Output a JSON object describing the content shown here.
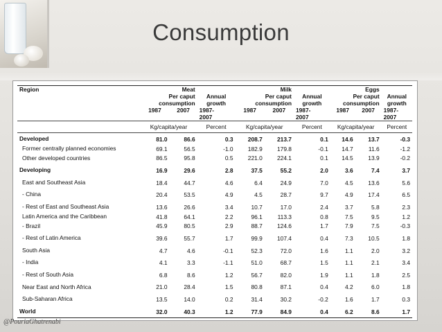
{
  "slide": {
    "title": "Consumption",
    "watermark": "@PouriaGhatrenabi"
  },
  "table": {
    "header": {
      "region": "Region",
      "groups": [
        "Meat",
        "Milk",
        "Eggs"
      ],
      "per_caput": "Per caput",
      "consumption": "consumption",
      "annual": "Annual",
      "growth": "growth",
      "year_a": "1987",
      "year_b": "2007",
      "period_top": "1987-",
      "period_bottom": "2007",
      "unit": "Kg/capita/year",
      "percent": "Percent"
    },
    "rows": [
      {
        "label": "Developed",
        "bold": true,
        "indent": 0,
        "v": [
          "81.0",
          "86.6",
          "0.3",
          "208.7",
          "213.7",
          "0.1",
          "14.6",
          "13.7",
          "-0.3"
        ]
      },
      {
        "label": "Former centrally planned economies",
        "bold": false,
        "indent": 1,
        "v": [
          "69.1",
          "56.5",
          "-1.0",
          "182.9",
          "179.8",
          "-0.1",
          "14.7",
          "11.6",
          "-1.2"
        ]
      },
      {
        "label": "Other developed countries",
        "bold": false,
        "indent": 1,
        "v": [
          "86.5",
          "95.8",
          "0.5",
          "221.0",
          "224.1",
          "0.1",
          "14.5",
          "13.9",
          "-0.2"
        ]
      },
      {
        "label": "Developing",
        "bold": true,
        "indent": 0,
        "v": [
          "16.9",
          "29.6",
          "2.8",
          "37.5",
          "55.2",
          "2.0",
          "3.6",
          "7.4",
          "3.7"
        ]
      },
      {
        "label": "East and Southeast Asia",
        "bold": false,
        "indent": 1,
        "v": [
          "18.4",
          "44.7",
          "4.6",
          "6.4",
          "24.9",
          "7.0",
          "4.5",
          "13.6",
          "5.6"
        ]
      },
      {
        "label": "- China",
        "bold": false,
        "indent": 2,
        "v": [
          "20.4",
          "53.5",
          "4.9",
          "4.5",
          "28.7",
          "9.7",
          "4.9",
          "17.4",
          "6.5"
        ]
      },
      {
        "label": "- Rest of East and Southeast Asia",
        "bold": false,
        "indent": 2,
        "v": [
          "13.6",
          "26.6",
          "3.4",
          "10.7",
          "17.0",
          "2.4",
          "3.7",
          "5.8",
          "2.3"
        ]
      },
      {
        "label": "Latin America and the Caribbean",
        "bold": false,
        "indent": 1,
        "v": [
          "41.8",
          "64.1",
          "2.2",
          "96.1",
          "113.3",
          "0.8",
          "7.5",
          "9.5",
          "1.2"
        ]
      },
      {
        "label": "- Brazil",
        "bold": false,
        "indent": 2,
        "v": [
          "45.9",
          "80.5",
          "2.9",
          "88.7",
          "124.6",
          "1.7",
          "7.9",
          "7.5",
          "-0.3"
        ]
      },
      {
        "label": "- Rest of Latin America",
        "bold": false,
        "indent": 2,
        "v": [
          "39.6",
          "55.7",
          "1.7",
          "99.9",
          "107.4",
          "0.4",
          "7.3",
          "10.5",
          "1.8"
        ]
      },
      {
        "label": "South Asia",
        "bold": false,
        "indent": 1,
        "v": [
          "4.7",
          "4.6",
          "-0.1",
          "52.3",
          "72.0",
          "1.6",
          "1.1",
          "2.0",
          "3.2"
        ]
      },
      {
        "label": "- India",
        "bold": false,
        "indent": 2,
        "v": [
          "4.1",
          "3.3",
          "-1.1",
          "51.0",
          "68.7",
          "1.5",
          "1.1",
          "2.1",
          "3.4"
        ]
      },
      {
        "label": "- Rest of South Asia",
        "bold": false,
        "indent": 2,
        "v": [
          "6.8",
          "8.6",
          "1.2",
          "56.7",
          "82.0",
          "1.9",
          "1.1",
          "1.8",
          "2.5"
        ]
      },
      {
        "label": "Near East and North Africa",
        "bold": false,
        "indent": 1,
        "v": [
          "21.0",
          "28.4",
          "1.5",
          "80.8",
          "87.1",
          "0.4",
          "4.2",
          "6.0",
          "1.8"
        ]
      },
      {
        "label": "Sub-Saharan Africa",
        "bold": false,
        "indent": 1,
        "v": [
          "13.5",
          "14.0",
          "0.2",
          "31.4",
          "30.2",
          "-0.2",
          "1.6",
          "1.7",
          "0.3"
        ]
      },
      {
        "label": "World",
        "bold": true,
        "indent": 0,
        "v": [
          "32.0",
          "40.3",
          "1.2",
          "77.9",
          "84.9",
          "0.4",
          "6.2",
          "8.6",
          "1.7"
        ]
      }
    ]
  }
}
